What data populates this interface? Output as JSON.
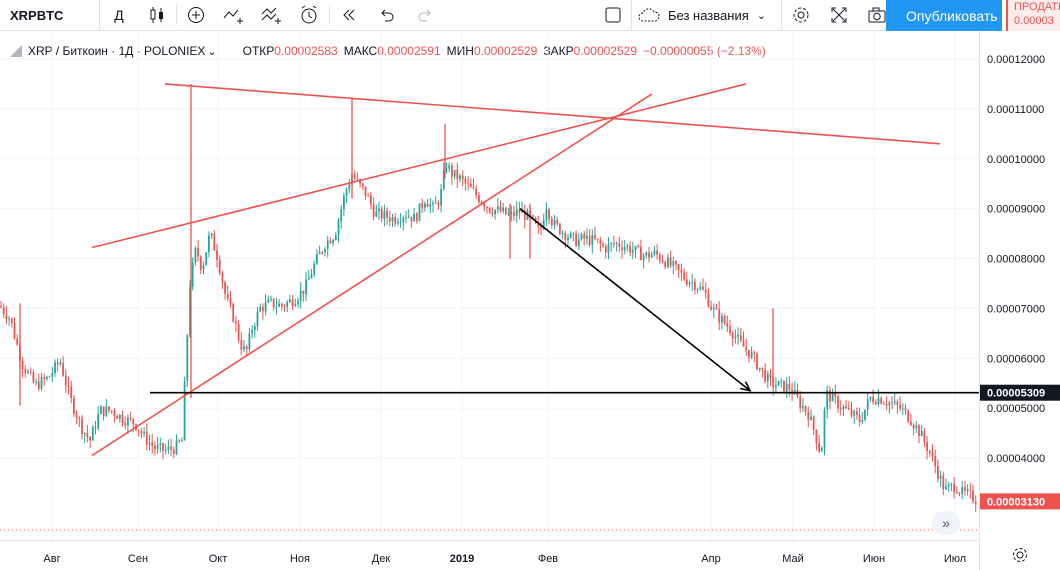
{
  "toolbar": {
    "symbol": "XRPBTC",
    "interval": "Д",
    "layout_name": "Без названия",
    "publish_label": "Опубликовать",
    "sell_label": "ПРОДАТЬ",
    "sell_price": "0.00003"
  },
  "legend": {
    "title": "XRP / Биткоин · 1Д · POLONIEX",
    "open_label": "ОТКР",
    "open": "0.00002583",
    "high_label": "МАКС",
    "high": "0.00002591",
    "low_label": "МИН",
    "low": "0.00002529",
    "close_label": "ЗАКР",
    "close": "0.00002529",
    "change": "−0.00000055 (−2.13%)"
  },
  "chart_data": {
    "type": "candlestick",
    "y_ticks": [
      "0.00012000",
      "0.00011000",
      "0.00010000",
      "0.00009000",
      "0.00008000",
      "0.00007000",
      "0.00006000",
      "0.00005000",
      "0.00004000"
    ],
    "x_ticks": [
      "Авг",
      "Сен",
      "Окт",
      "Ноя",
      "Дек",
      "2019",
      "Фев",
      "Апр",
      "Май",
      "Июн",
      "Июл"
    ],
    "ylim": [
      2.35e-05,
      0.000128
    ],
    "price_labels": [
      {
        "value": "0.00005309",
        "price": 5.309e-05,
        "style": "black"
      },
      {
        "value": "0.00003130",
        "price": 3.13e-05,
        "style": "red"
      }
    ],
    "close_path": [
      [
        0,
        7.05
      ],
      [
        10,
        6.8
      ],
      [
        22,
        5.9
      ],
      [
        35,
        5.45
      ],
      [
        48,
        5.6
      ],
      [
        60,
        5.95
      ],
      [
        70,
        5.2
      ],
      [
        82,
        4.6
      ],
      [
        90,
        4.35
      ],
      [
        100,
        4.95
      ],
      [
        112,
        4.95
      ],
      [
        122,
        4.8
      ],
      [
        135,
        4.7
      ],
      [
        145,
        4.4
      ],
      [
        155,
        4.2
      ],
      [
        165,
        4.15
      ],
      [
        175,
        4.2
      ],
      [
        182,
        4.35
      ],
      [
        186,
        6.0
      ],
      [
        190,
        7.5
      ],
      [
        196,
        8.2
      ],
      [
        202,
        7.8
      ],
      [
        210,
        8.5
      ],
      [
        218,
        8.0
      ],
      [
        226,
        7.2
      ],
      [
        234,
        6.8
      ],
      [
        240,
        6.3
      ],
      [
        246,
        6.1
      ],
      [
        252,
        6.6
      ],
      [
        260,
        7.0
      ],
      [
        270,
        7.1
      ],
      [
        282,
        7.05
      ],
      [
        295,
        7.2
      ],
      [
        305,
        7.4
      ],
      [
        315,
        7.9
      ],
      [
        325,
        8.3
      ],
      [
        335,
        8.5
      ],
      [
        345,
        9.3
      ],
      [
        352,
        9.7
      ],
      [
        358,
        9.5
      ],
      [
        366,
        9.3
      ],
      [
        375,
        8.9
      ],
      [
        385,
        8.85
      ],
      [
        395,
        8.8
      ],
      [
        405,
        8.9
      ],
      [
        415,
        8.8
      ],
      [
        425,
        9.2
      ],
      [
        433,
        9.0
      ],
      [
        440,
        9.2
      ],
      [
        446,
        9.9
      ],
      [
        452,
        9.7
      ],
      [
        460,
        9.6
      ],
      [
        470,
        9.4
      ],
      [
        480,
        9.2
      ],
      [
        490,
        9.0
      ],
      [
        500,
        8.95
      ],
      [
        510,
        8.85
      ],
      [
        520,
        8.95
      ],
      [
        530,
        8.8
      ],
      [
        540,
        8.5
      ],
      [
        546,
        9.1
      ],
      [
        553,
        8.7
      ],
      [
        565,
        8.5
      ],
      [
        575,
        8.35
      ],
      [
        585,
        8.4
      ],
      [
        595,
        8.35
      ],
      [
        605,
        8.2
      ],
      [
        615,
        8.3
      ],
      [
        625,
        8.25
      ],
      [
        635,
        8.15
      ],
      [
        645,
        8.05
      ],
      [
        655,
        8.1
      ],
      [
        665,
        7.95
      ],
      [
        675,
        7.8
      ],
      [
        685,
        7.6
      ],
      [
        695,
        7.5
      ],
      [
        705,
        7.3
      ],
      [
        712,
        7.0
      ],
      [
        720,
        6.8
      ],
      [
        730,
        6.6
      ],
      [
        740,
        6.3
      ],
      [
        750,
        6.1
      ],
      [
        760,
        5.8
      ],
      [
        770,
        5.5
      ],
      [
        780,
        5.45
      ],
      [
        790,
        5.4
      ],
      [
        800,
        5.1
      ],
      [
        808,
        4.9
      ],
      [
        815,
        4.5
      ],
      [
        821,
        4.05
      ],
      [
        826,
        5.3
      ],
      [
        832,
        5.2
      ],
      [
        840,
        5.05
      ],
      [
        850,
        4.9
      ],
      [
        860,
        4.75
      ],
      [
        870,
        5.2
      ],
      [
        880,
        5.2
      ],
      [
        890,
        5.1
      ],
      [
        900,
        5.0
      ],
      [
        910,
        4.8
      ],
      [
        920,
        4.5
      ],
      [
        930,
        4.1
      ],
      [
        938,
        3.7
      ],
      [
        945,
        3.35
      ],
      [
        955,
        3.45
      ],
      [
        962,
        3.3
      ],
      [
        970,
        3.25
      ],
      [
        978,
        3.13
      ]
    ],
    "wicks": [
      {
        "x": 191,
        "high": 11.5,
        "low": 5.2
      },
      {
        "x": 352,
        "high": 11.2,
        "low": 9.2
      },
      {
        "x": 445,
        "high": 10.7,
        "low": 9.6
      },
      {
        "x": 510,
        "high": 9.1,
        "low": 8.0
      },
      {
        "x": 530,
        "high": 9.1,
        "low": 8.0
      },
      {
        "x": 773,
        "high": 7.0,
        "low": 5.5
      },
      {
        "x": 20,
        "high": 7.1,
        "low": 5.05
      }
    ],
    "trendlines": [
      {
        "color": "#ef5350",
        "from": [
          165,
          11.5
        ],
        "to": [
          940,
          10.3
        ]
      },
      {
        "color": "#ef5350",
        "from": [
          92,
          8.22
        ],
        "to": [
          746,
          11.5
        ]
      },
      {
        "color": "#ef5350",
        "from": [
          92,
          4.05
        ],
        "to": [
          652,
          11.3
        ]
      },
      {
        "color": "#000000",
        "from": [
          150,
          5.309
        ],
        "to": [
          979,
          5.309
        ]
      }
    ],
    "arrow": {
      "color": "#000000",
      "from": [
        520,
        9.0
      ],
      "to": [
        750,
        5.35
      ]
    }
  }
}
